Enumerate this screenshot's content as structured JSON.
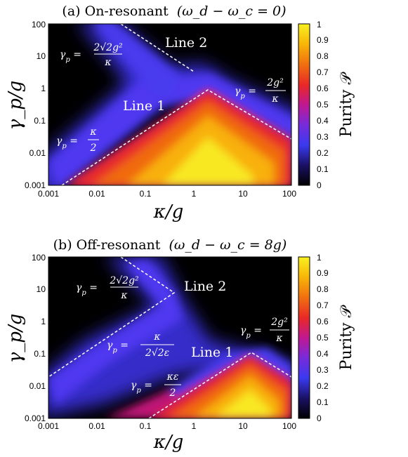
{
  "chart_data": [
    {
      "type": "heatmap",
      "panel": "(a)",
      "title_prefix": "(a)  On-resonant",
      "title_math": "(ω_d − ω_c = 0)",
      "xlabel": "κ/g",
      "ylabel": "γ_p/g",
      "x_scale": "log",
      "y_scale": "log",
      "xlim": [
        0.001,
        100
      ],
      "ylim": [
        0.001,
        100
      ],
      "x_ticks": [
        "0.001",
        "0.01",
        "0.1",
        "1",
        "10",
        "100"
      ],
      "y_ticks": [
        "0.001",
        "0.01",
        "0.1",
        "1",
        "10",
        "100"
      ],
      "colorbar": {
        "label": "Purity 𝒫",
        "range": [
          0,
          1
        ],
        "ticks": [
          "0",
          "0.1",
          "0.2",
          "0.3",
          "0.4",
          "0.5",
          "0.6",
          "0.7",
          "0.8",
          "0.9",
          "1"
        ],
        "colormap": "black-blue-purple-red-orange-yellow"
      },
      "annotations": [
        {
          "text": "Line 1",
          "x": 0.25,
          "y": 0.5
        },
        {
          "text": "Line 2",
          "x": 8,
          "y": 30
        },
        {
          "text": "γ_p = 2√2g²/κ",
          "x": 0.006,
          "y": 15
        },
        {
          "text": "γ_p = 2g²/κ",
          "x": 15,
          "y": 0.8
        },
        {
          "text": "γ_p = κ/2",
          "x": 0.005,
          "y": 0.02
        }
      ],
      "dashed_lines": [
        {
          "name": "Line 1",
          "points": [
            [
              0.002,
              0.001
            ],
            [
              2,
              1
            ],
            [
              100,
              0.02
            ]
          ]
        },
        {
          "name": "Line 2",
          "points": [
            [
              0.03,
              100
            ],
            [
              1,
              3
            ]
          ]
        }
      ]
    },
    {
      "type": "heatmap",
      "panel": "(b)",
      "title_prefix": "(b)  Off-resonant",
      "title_math": "(ω_d − ω_c = 8g)",
      "xlabel": "κ/g",
      "ylabel": "γ_p/g",
      "x_scale": "log",
      "y_scale": "log",
      "xlim": [
        0.001,
        100
      ],
      "ylim": [
        0.001,
        100
      ],
      "x_ticks": [
        "0.001",
        "0.01",
        "0.1",
        "1",
        "10",
        "100"
      ],
      "y_ticks": [
        "0.001",
        "0.01",
        "0.1",
        "1",
        "10",
        "100"
      ],
      "colorbar": {
        "label": "Purity 𝒫",
        "range": [
          0,
          1
        ],
        "ticks": [
          "0",
          "0.1",
          "0.2",
          "0.3",
          "0.4",
          "0.5",
          "0.6",
          "0.7",
          "0.8",
          "0.9",
          "1"
        ],
        "colormap": "black-blue-purple-red-orange-yellow"
      },
      "annotations": [
        {
          "text": "Line 1",
          "x": 2,
          "y": 0.1
        },
        {
          "text": "Line 2",
          "x": 2,
          "y": 15
        },
        {
          "text": "γ_p = 2√2g²/κ",
          "x": 0.03,
          "y": 15
        },
        {
          "text": "γ_p = κ/(2√2ε)",
          "x": 0.05,
          "y": 0.12
        },
        {
          "text": "γ_p = 2g²/κ",
          "x": 20,
          "y": 0.3
        },
        {
          "text": "γ_p = κε/2",
          "x": 0.2,
          "y": 0.008
        }
      ],
      "dashed_lines": [
        {
          "name": "Line 1",
          "points": [
            [
              0.1,
              0.001
            ],
            [
              16,
              0.13
            ],
            [
              100,
              0.02
            ]
          ]
        },
        {
          "name": "Line 2",
          "points": [
            [
              0.03,
              100
            ],
            [
              0.4,
              8
            ],
            [
              0.001,
              0.025
            ]
          ]
        }
      ]
    }
  ]
}
